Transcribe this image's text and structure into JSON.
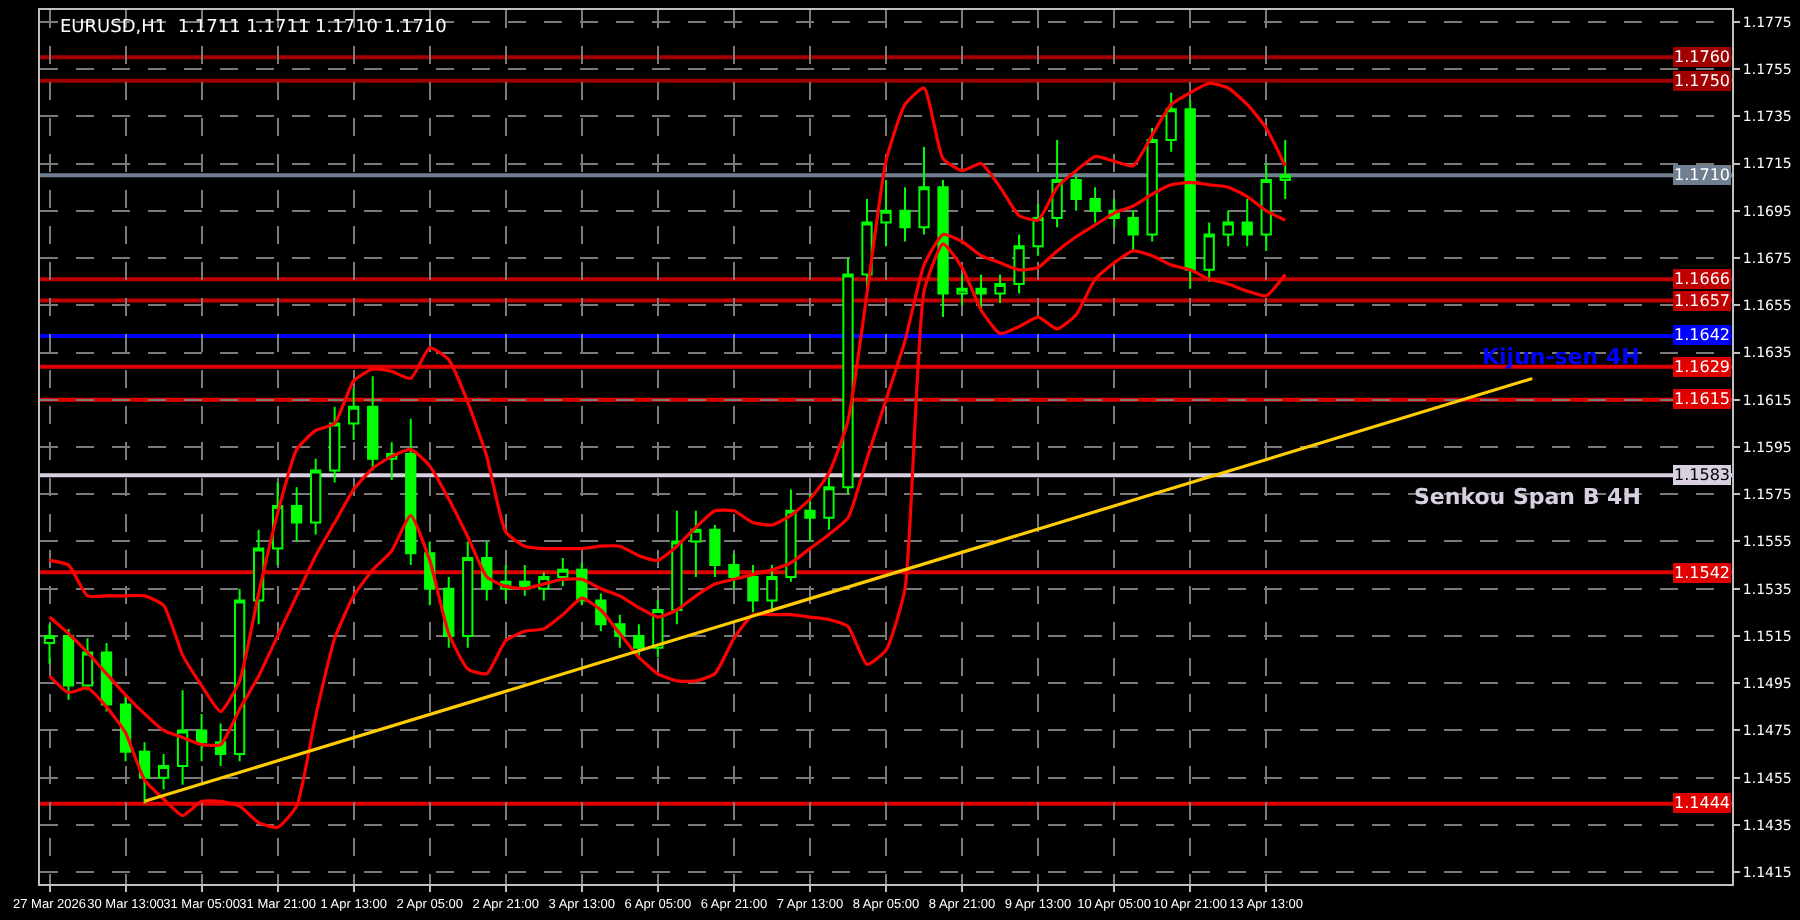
{
  "chart_data": {
    "type": "candlestick",
    "title": "EURUSD,H1  1.1711 1.1711 1.1710 1.1710",
    "categories": [
      "27 Mar 2026",
      null,
      null,
      null,
      "30 Mar 13:00",
      null,
      null,
      null,
      "31 Mar 05:00",
      null,
      null,
      null,
      "31 Mar 21:00",
      null,
      null,
      null,
      "1 Apr 13:00",
      null,
      null,
      null,
      "2 Apr 05:00",
      null,
      null,
      null,
      "2 Apr 21:00",
      null,
      null,
      null,
      "3 Apr 13:00",
      null,
      null,
      null,
      "6 Apr 05:00",
      null,
      null,
      null,
      "6 Apr 21:00",
      null,
      null,
      null,
      "7 Apr 13:00",
      null,
      null,
      null,
      "8 Apr 05:00",
      null,
      null,
      null,
      "8 Apr 21:00",
      null,
      null,
      null,
      "9 Apr 13:00",
      null,
      null,
      null,
      "10 Apr 05:00",
      null,
      null,
      null,
      "10 Apr 21:00",
      null,
      null,
      null,
      "13 Apr 13:00",
      null,
      null,
      null,
      null,
      null,
      null,
      null,
      null,
      null,
      null,
      null,
      null,
      null,
      null,
      null,
      null,
      null,
      null,
      null,
      null,
      null,
      null,
      null,
      null
    ],
    "ohlc": [
      [
        1.1512,
        1.152,
        1.1503,
        1.1515
      ],
      [
        1.1515,
        1.1518,
        1.1488,
        1.1494
      ],
      [
        1.1494,
        1.1514,
        1.1492,
        1.1508
      ],
      [
        1.1508,
        1.1512,
        1.1483,
        1.1486
      ],
      [
        1.1486,
        1.149,
        1.1462,
        1.1466
      ],
      [
        1.1466,
        1.147,
        1.1444,
        1.1455
      ],
      [
        1.1455,
        1.1465,
        1.145,
        1.146
      ],
      [
        1.146,
        1.1492,
        1.1452,
        1.1475
      ],
      [
        1.1475,
        1.1482,
        1.1462,
        1.147
      ],
      [
        1.147,
        1.1478,
        1.146,
        1.1465
      ],
      [
        1.1465,
        1.1535,
        1.1462,
        1.153
      ],
      [
        1.153,
        1.156,
        1.152,
        1.1552
      ],
      [
        1.1552,
        1.158,
        1.1545,
        1.157
      ],
      [
        1.157,
        1.1578,
        1.1555,
        1.1563
      ],
      [
        1.1563,
        1.159,
        1.1558,
        1.1585
      ],
      [
        1.1585,
        1.1612,
        1.158,
        1.1605
      ],
      [
        1.1605,
        1.162,
        1.1598,
        1.1612
      ],
      [
        1.1612,
        1.1625,
        1.1585,
        1.159
      ],
      [
        1.159,
        1.1597,
        1.1581,
        1.1592
      ],
      [
        1.1592,
        1.1607,
        1.1545,
        1.155
      ],
      [
        1.155,
        1.1555,
        1.1528,
        1.1535
      ],
      [
        1.1535,
        1.154,
        1.151,
        1.1515
      ],
      [
        1.1515,
        1.1555,
        1.151,
        1.1548
      ],
      [
        1.1548,
        1.1555,
        1.153,
        1.1535
      ],
      [
        1.1535,
        1.1545,
        1.153,
        1.1538
      ],
      [
        1.1538,
        1.1545,
        1.1532,
        1.1535
      ],
      [
        1.1535,
        1.1542,
        1.153,
        1.154
      ],
      [
        1.154,
        1.1548,
        1.1536,
        1.1543
      ],
      [
        1.1543,
        1.1546,
        1.1528,
        1.153
      ],
      [
        1.153,
        1.1533,
        1.1517,
        1.152
      ],
      [
        1.152,
        1.1524,
        1.151,
        1.1515
      ],
      [
        1.1515,
        1.152,
        1.1505,
        1.151
      ],
      [
        1.151,
        1.153,
        1.1506,
        1.1526
      ],
      [
        1.1526,
        1.1568,
        1.152,
        1.1555
      ],
      [
        1.1555,
        1.1568,
        1.154,
        1.156
      ],
      [
        1.156,
        1.1562,
        1.154,
        1.1545
      ],
      [
        1.1545,
        1.155,
        1.1535,
        1.154
      ],
      [
        1.154,
        1.1545,
        1.1525,
        1.153
      ],
      [
        1.153,
        1.1545,
        1.1525,
        1.154
      ],
      [
        1.154,
        1.1577,
        1.1538,
        1.1568
      ],
      [
        1.1568,
        1.1575,
        1.1555,
        1.1565
      ],
      [
        1.1565,
        1.1582,
        1.156,
        1.1578
      ],
      [
        1.1578,
        1.1675,
        1.1575,
        1.1668
      ],
      [
        1.1668,
        1.17,
        1.1662,
        1.169
      ],
      [
        1.169,
        1.1708,
        1.168,
        1.1695
      ],
      [
        1.1695,
        1.1705,
        1.1682,
        1.1688
      ],
      [
        1.1688,
        1.1722,
        1.1685,
        1.1705
      ],
      [
        1.1705,
        1.1708,
        1.165,
        1.166
      ],
      [
        1.166,
        1.1668,
        1.1655,
        1.1662
      ],
      [
        1.1662,
        1.1668,
        1.1652,
        1.166
      ],
      [
        1.166,
        1.1668,
        1.1656,
        1.1664
      ],
      [
        1.1664,
        1.1685,
        1.166,
        1.168
      ],
      [
        1.168,
        1.1698,
        1.1676,
        1.1692
      ],
      [
        1.1692,
        1.1725,
        1.1688,
        1.1708
      ],
      [
        1.1708,
        1.171,
        1.1695,
        1.17
      ],
      [
        1.17,
        1.1705,
        1.169,
        1.1695
      ],
      [
        1.1695,
        1.17,
        1.1688,
        1.1692
      ],
      [
        1.1692,
        1.1695,
        1.1678,
        1.1685
      ],
      [
        1.1685,
        1.173,
        1.1682,
        1.1725
      ],
      [
        1.1725,
        1.1745,
        1.172,
        1.1738
      ],
      [
        1.1738,
        1.1742,
        1.1662,
        1.167
      ],
      [
        1.167,
        1.169,
        1.1665,
        1.1685
      ],
      [
        1.1685,
        1.1695,
        1.168,
        1.169
      ],
      [
        1.169,
        1.17,
        1.168,
        1.1685
      ],
      [
        1.1685,
        1.1715,
        1.1678,
        1.1708
      ],
      [
        1.1708,
        1.1725,
        1.17,
        1.171
      ],
      null,
      null,
      null,
      null,
      null,
      null,
      null,
      null,
      null,
      null,
      null,
      null,
      null,
      null,
      null,
      null,
      null,
      null,
      null,
      null,
      null,
      null,
      null
    ],
    "series": [
      {
        "type": "line",
        "color": "#ff0000",
        "values": [
          1.1547,
          1.1545,
          1.1532,
          1.1532,
          1.1532,
          1.1532,
          1.1528,
          1.1507,
          1.1494,
          1.1483,
          1.1496,
          1.1533,
          1.1567,
          1.1594,
          1.1602,
          1.1605,
          1.1623,
          1.1628,
          1.1627,
          1.1624,
          1.1637,
          1.1632,
          1.1614,
          1.1591,
          1.1559,
          1.1553,
          1.1552,
          1.1552,
          1.1552,
          1.1553,
          1.1553,
          1.1549,
          1.1547,
          1.1553,
          1.1561,
          1.1568,
          1.1568,
          1.1563,
          1.1562,
          1.1566,
          1.1573,
          1.1584,
          1.1606,
          1.166,
          1.1716,
          1.174,
          1.1747,
          1.1717,
          1.1712,
          1.1715,
          1.1705,
          1.1693,
          1.1691,
          1.1705,
          1.1712,
          1.1718,
          1.1716,
          1.1714,
          1.1727,
          1.174,
          1.1745,
          1.1749,
          1.1747,
          1.174,
          1.173,
          1.1714,
          null,
          null,
          null,
          null,
          null,
          null,
          null,
          null,
          null,
          null,
          null,
          null,
          null,
          null,
          null,
          null,
          null,
          null,
          null,
          null,
          null,
          null,
          null
        ]
      },
      {
        "type": "line",
        "color": "#ff0000",
        "values": [
          1.1523,
          1.1516,
          1.1508,
          1.1499,
          1.149,
          1.1482,
          1.1475,
          1.1472,
          1.1469,
          1.1469,
          1.1484,
          1.1498,
          1.1515,
          1.1532,
          1.1549,
          1.1563,
          1.1577,
          1.1586,
          1.1591,
          1.1594,
          1.1587,
          1.1573,
          1.1557,
          1.154,
          1.1536,
          1.1535,
          1.1537,
          1.1539,
          1.1539,
          1.1535,
          1.1532,
          1.1527,
          1.1523,
          1.1526,
          1.1532,
          1.1537,
          1.1539,
          1.1541,
          1.1543,
          1.1546,
          1.1552,
          1.1558,
          1.1565,
          1.159,
          1.1615,
          1.164,
          1.1672,
          1.1685,
          1.1682,
          1.1676,
          1.1673,
          1.167,
          1.1671,
          1.1678,
          1.1684,
          1.1689,
          1.1694,
          1.1697,
          1.1702,
          1.1706,
          1.1707,
          1.1706,
          1.1705,
          1.1701,
          1.1695,
          1.1691,
          null,
          null,
          null,
          null,
          null,
          null,
          null,
          null,
          null,
          null,
          null,
          null,
          null,
          null,
          null,
          null,
          null,
          null,
          null,
          null,
          null,
          null,
          null
        ]
      },
      {
        "type": "line",
        "color": "#ff0000",
        "values": [
          1.1498,
          1.1491,
          1.1493,
          1.1485,
          1.1474,
          1.1454,
          1.1446,
          1.1439,
          1.1445,
          1.1445,
          1.1443,
          1.1436,
          1.1434,
          1.1443,
          1.1481,
          1.1514,
          1.1532,
          1.1543,
          1.1551,
          1.1566,
          1.1547,
          1.1516,
          1.1501,
          1.1499,
          1.1513,
          1.1517,
          1.1518,
          1.1524,
          1.1531,
          1.1526,
          1.1516,
          1.1506,
          1.1499,
          1.1496,
          1.1496,
          1.1499,
          1.1514,
          1.1524,
          1.1524,
          1.1524,
          1.1523,
          1.1522,
          1.1519,
          1.1503,
          1.1509,
          1.1535,
          1.1661,
          1.1681,
          1.1671,
          1.1653,
          1.1643,
          1.1646,
          1.165,
          1.1645,
          1.1651,
          1.1666,
          1.1673,
          1.1678,
          1.1676,
          1.1672,
          1.167,
          1.1666,
          1.1664,
          1.1661,
          1.1659,
          1.1668,
          null,
          null,
          null,
          null,
          null,
          null,
          null,
          null,
          null,
          null,
          null,
          null,
          null,
          null,
          null,
          null,
          null,
          null,
          null,
          null,
          null,
          null,
          null
        ]
      },
      {
        "type": "line",
        "color": "#ffcc00",
        "values": [
          null,
          null,
          null,
          null,
          null,
          1.1445,
          null,
          null,
          null,
          null,
          null,
          null,
          null,
          null,
          null,
          null,
          null,
          null,
          null,
          null,
          null,
          null,
          null,
          null,
          null,
          null,
          null,
          null,
          null,
          null,
          null,
          null,
          null,
          null,
          null,
          null,
          null,
          null,
          null,
          null,
          null,
          null,
          null,
          null,
          null,
          null,
          null,
          null,
          null,
          null,
          null,
          null,
          null,
          null,
          null,
          null,
          null,
          null,
          null,
          null,
          null,
          null,
          null,
          null,
          null,
          null,
          null,
          null,
          null,
          null,
          null,
          null,
          null,
          null,
          null,
          null,
          null,
          null,
          1.1624,
          null,
          null,
          null,
          null,
          null,
          null,
          null,
          null,
          null,
          null
        ]
      }
    ],
    "ref_lines": [
      {
        "axis": "y",
        "value": 1.176,
        "label": "1.1760",
        "color": "#a00000"
      },
      {
        "axis": "y",
        "value": 1.175,
        "label": "1.1750",
        "color": "#a00000"
      },
      {
        "axis": "y",
        "value": 1.171,
        "label": "1.1710",
        "color": "#708090"
      },
      {
        "axis": "y",
        "value": 1.1666,
        "label": "1.1666",
        "color": "#c00000"
      },
      {
        "axis": "y",
        "value": 1.1657,
        "label": "1.1657",
        "color": "#c00000"
      },
      {
        "axis": "y",
        "value": 1.1642,
        "label": "1.1642",
        "color": "#0000ff"
      },
      {
        "axis": "y",
        "value": 1.1629,
        "label": "1.1629",
        "color": "#e00000"
      },
      {
        "axis": "y",
        "value": 1.1615,
        "label": "1.1615",
        "color": "#e00000"
      },
      {
        "axis": "y",
        "value": 1.1583,
        "label": "1.1583",
        "color": "#d8d0e0"
      },
      {
        "axis": "y",
        "value": 1.1542,
        "label": "1.1542",
        "color": "#e00000"
      },
      {
        "axis": "y",
        "value": 1.1444,
        "label": "1.1444",
        "color": "#e00000"
      }
    ],
    "annotations": [
      {
        "text": "Kijun-sen 4H",
        "y": 1.1642
      },
      {
        "text": "Senkou Span B 4H",
        "y": 1.1583
      }
    ],
    "ylim": [
      1.141,
      1.178
    ],
    "yticks": [
      1.1415,
      1.1435,
      1.1455,
      1.1475,
      1.1495,
      1.1515,
      1.1535,
      1.1555,
      1.1575,
      1.1595,
      1.1615,
      1.1635,
      1.1655,
      1.1675,
      1.1695,
      1.1715,
      1.1735,
      1.1755,
      1.1775
    ],
    "grid": true
  }
}
